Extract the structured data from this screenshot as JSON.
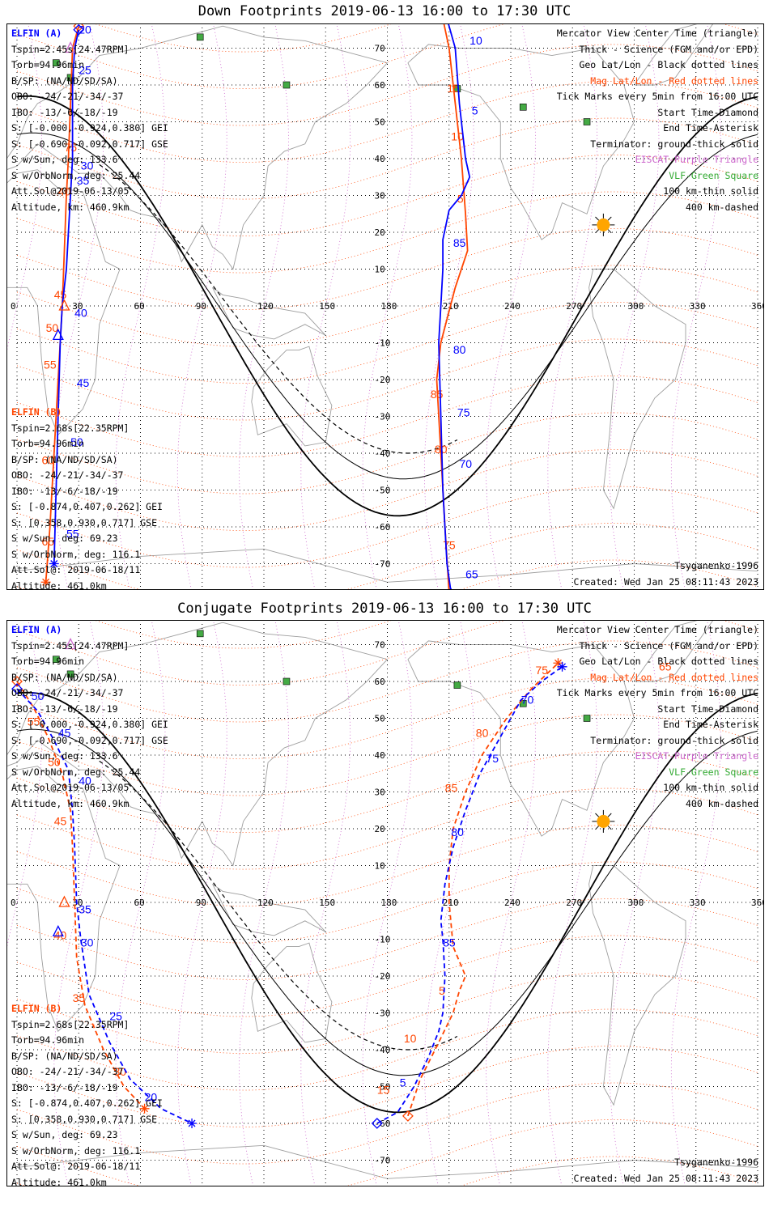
{
  "panels": [
    {
      "title": "Down Footprints 2019-06-13 16:00 to 17:30 UTC",
      "elfin_a": {
        "label": "ELFIN (A)",
        "lines": [
          "Tspin=2.45s[24.47RPM]",
          "Torb=94.96min",
          "B/SP: (NA/ND/SD/SA)",
          "OBO: -24/-21/-34/-37",
          "IBO: -13/-6/-18/-19",
          "S: [-0.000,-0.924,0.380] GEI",
          "S: [-0.690,-0.092,0.717] GSE",
          "S w/Sun, deg: 133.6",
          "S w/OrbNorm, deg: 25.44",
          "Att.Sol@2019-06-13/05",
          "Altitude, km: 460.9km"
        ]
      },
      "elfin_b": {
        "label": "ELFIN (B)",
        "lines": [
          "Tspin=2.68s[22.35RPM]",
          "Torb=94.96min",
          "B/SP: (NA/ND/SD/SA)",
          "OBO: -24/-21/-34/-37",
          "IBO: -13/-6/-18/-19",
          "S: [-0.874,0.407,0.262] GEI",
          "S: [0.358,0.930,0.717] GSE",
          "S w/Sun, deg: 69.23",
          "S w/OrbNorm, deg: 116.1",
          "Att.Sol@: 2019-06-18/11",
          "Altitude: 461.0km"
        ]
      },
      "legend": {
        "black": [
          "Mercator View Center Time (triangle)",
          "Thick - Science (FGM and/or EPD)",
          "Geo Lat/Lon - Black dotted lines"
        ],
        "red": "Mag Lat/Lon - Red dotted lines",
        "black2": [
          "Tick Marks every 5min from 16:00 UTC",
          "Start Time-Diamond",
          "End Time-Asterisk",
          "Terminator: ground-thick solid"
        ],
        "purple": "EISCAT-Purple Triangle",
        "green": "VLF-Green Square",
        "black3": [
          "100 km-thin solid",
          "400 km-dashed"
        ]
      },
      "model": "Tsyganenko-1996",
      "created": "Created: Wed Jan 25 08:11:43 2023",
      "trackA": {
        "color": "#0000ff",
        "dash": "",
        "pts": [
          [
            30,
            75
          ],
          [
            28,
            70
          ],
          [
            27,
            60
          ],
          [
            27,
            40
          ],
          [
            26,
            30
          ],
          [
            25,
            20
          ],
          [
            24,
            10
          ],
          [
            22,
            0
          ],
          [
            21,
            -10
          ],
          [
            20,
            -30
          ],
          [
            19,
            -50
          ],
          [
            18,
            -70
          ]
        ],
        "labels": [
          [
            "20",
            30,
            74
          ],
          [
            "25",
            30,
            63
          ],
          [
            "30",
            31,
            37
          ],
          [
            "35",
            29,
            33
          ],
          [
            "40",
            28,
            -3
          ],
          [
            "45",
            29,
            -22
          ],
          [
            "50",
            26,
            -38
          ],
          [
            "55",
            24,
            -63
          ]
        ]
      },
      "trackB": {
        "color": "#ff4500",
        "dash": "",
        "pts": [
          [
            30,
            76
          ],
          [
            27,
            70
          ],
          [
            26,
            55
          ],
          [
            25,
            40
          ],
          [
            24,
            30
          ],
          [
            23,
            15
          ],
          [
            22,
            0
          ],
          [
            20,
            -20
          ],
          [
            18,
            -40
          ],
          [
            16,
            -60
          ],
          [
            14,
            -75
          ]
        ],
        "labels": [
          [
            "75",
            23,
            42
          ],
          [
            "40",
            20,
            30
          ],
          [
            "45",
            18,
            2
          ],
          [
            "50",
            14,
            -7
          ],
          [
            "55",
            13,
            -17
          ],
          [
            "60",
            12,
            -43
          ],
          [
            "65",
            12,
            -65
          ]
        ]
      },
      "trackA2": {
        "color": "#0000ff",
        "dash": "",
        "pts": [
          [
            209,
            78
          ],
          [
            213,
            70
          ],
          [
            215,
            55
          ],
          [
            218,
            40
          ],
          [
            220,
            35
          ],
          [
            216,
            30
          ],
          [
            210,
            26
          ],
          [
            207,
            18
          ],
          [
            207,
            10
          ],
          [
            206,
            0
          ],
          [
            205,
            -10
          ],
          [
            206,
            -30
          ],
          [
            207,
            -50
          ],
          [
            209,
            -70
          ],
          [
            211,
            -78
          ]
        ],
        "labels": [
          [
            "10",
            220,
            71
          ],
          [
            "5",
            221,
            52
          ],
          [
            "85",
            212,
            16
          ],
          [
            "80",
            212,
            -13
          ],
          [
            "75",
            214,
            -30
          ],
          [
            "70",
            215,
            -44
          ],
          [
            "65",
            218,
            -74
          ]
        ]
      },
      "trackB2": {
        "color": "#ff4500",
        "dash": "",
        "pts": [
          [
            207,
            78
          ],
          [
            210,
            70
          ],
          [
            213,
            55
          ],
          [
            216,
            40
          ],
          [
            218,
            25
          ],
          [
            219,
            15
          ],
          [
            213,
            5
          ],
          [
            206,
            -10
          ],
          [
            204,
            -20
          ],
          [
            206,
            -40
          ],
          [
            208,
            -60
          ],
          [
            210,
            -78
          ]
        ],
        "labels": [
          [
            "15",
            209,
            58
          ],
          [
            "10",
            211,
            45
          ],
          [
            "5",
            214,
            28
          ],
          [
            "85",
            201,
            -25
          ],
          [
            "80",
            203,
            -40
          ],
          [
            "75",
            207,
            -66
          ]
        ]
      }
    },
    {
      "title": "Conjugate Footprints 2019-06-13 16:00 to 17:30 UTC",
      "elfin_a": {
        "label": "ELFIN (A)",
        "lines": [
          "Tspin=2.45s[24.47RPM]",
          "Torb=94.96min",
          "B/SP: (NA/ND/SD/SA)",
          "OBO: -24/-21/-34/-37",
          "IBO: -13/-6/-18/-19",
          "S: [-0.000,-0.924,0.380] GEI",
          "S: [-0.690,-0.092,0.717] GSE",
          "S w/Sun, deg: 133.6",
          "S w/OrbNorm, deg: 25.44",
          "Att.Sol@2019-06-13/05",
          "Altitude, km: 460.9km"
        ]
      },
      "elfin_b": {
        "label": "ELFIN (B)",
        "lines": [
          "Tspin=2.68s[22.35RPM]",
          "Torb=94.96min",
          "B/SP: (NA/ND/SD/SA)",
          "OBO: -24/-21/-34/-37",
          "IBO: -13/-6/-18/-19",
          "S: [-0.874,0.407,0.262] GEI",
          "S: [0.358,0.930,0.717] GSE",
          "S w/Sun, deg: 69.23",
          "S w/OrbNorm, deg: 116.1",
          "Att.Sol@: 2019-06-18/11",
          "Altitude: 461.0km"
        ]
      },
      "legend": {
        "black": [
          "Mercator View Center Time (triangle)",
          "Thick - Science (FGM and/or EPD)",
          "Geo Lat/Lon - Black dotted lines"
        ],
        "red": "Mag Lat/Lon - Red dotted lines",
        "black2": [
          "Tick Marks every 5min from 16:00 UTC",
          "Start Time-Diamond",
          "End Time-Asterisk",
          "Terminator: ground-thick solid"
        ],
        "purple": "EISCAT-Purple Triangle",
        "green": "VLF-Green Square",
        "black3": [
          "100 km-thin solid",
          "400 km-dashed"
        ]
      },
      "model": "Tsyganenko-1996",
      "created": "Created: Wed Jan 25 08:11:43 2023",
      "trackA": {
        "color": "#0000ff",
        "dash": "6,4",
        "pts": [
          [
            0,
            58
          ],
          [
            10,
            52
          ],
          [
            18,
            44
          ],
          [
            25,
            36
          ],
          [
            27,
            25
          ],
          [
            28,
            15
          ],
          [
            29,
            0
          ],
          [
            31,
            -10
          ],
          [
            35,
            -25
          ],
          [
            45,
            -38
          ],
          [
            55,
            -48
          ],
          [
            70,
            -56
          ],
          [
            85,
            -60
          ]
        ],
        "labels": [
          [
            "50",
            7,
            55
          ],
          [
            "45",
            20,
            45
          ],
          [
            "40",
            30,
            32
          ],
          [
            "35",
            30,
            -3
          ],
          [
            "30",
            31,
            -12
          ],
          [
            "25",
            45,
            -32
          ],
          [
            "20",
            62,
            -54
          ]
        ]
      },
      "trackB": {
        "color": "#ff4500",
        "dash": "6,4",
        "pts": [
          [
            0,
            60
          ],
          [
            8,
            53
          ],
          [
            15,
            45
          ],
          [
            22,
            35
          ],
          [
            26,
            25
          ],
          [
            27,
            15
          ],
          [
            28,
            0
          ],
          [
            29,
            -15
          ],
          [
            33,
            -28
          ],
          [
            42,
            -40
          ],
          [
            52,
            -50
          ],
          [
            62,
            -56
          ]
        ],
        "labels": [
          [
            "55",
            5,
            48
          ],
          [
            "50",
            15,
            37
          ],
          [
            "45",
            18,
            21
          ],
          [
            "40",
            18,
            -10
          ],
          [
            "35",
            27,
            -27
          ],
          [
            "30",
            47,
            -47
          ]
        ]
      },
      "trackA2": {
        "color": "#0000ff",
        "dash": "6,4",
        "pts": [
          [
            175,
            -60
          ],
          [
            185,
            -57
          ],
          [
            193,
            -50
          ],
          [
            200,
            -42
          ],
          [
            205,
            -35
          ],
          [
            207,
            -30
          ],
          [
            208,
            -20
          ],
          [
            207,
            -10
          ],
          [
            206,
            -5
          ],
          [
            208,
            5
          ],
          [
            212,
            15
          ],
          [
            218,
            25
          ],
          [
            225,
            35
          ],
          [
            235,
            45
          ],
          [
            245,
            55
          ],
          [
            255,
            60
          ],
          [
            265,
            64
          ]
        ],
        "labels": [
          [
            "5",
            186,
            -50
          ],
          [
            "85",
            207,
            -12
          ],
          [
            "80",
            211,
            18
          ],
          [
            "75",
            228,
            38
          ],
          [
            "70",
            245,
            54
          ]
        ]
      },
      "trackB2": {
        "color": "#ff4500",
        "dash": "6,4",
        "pts": [
          [
            190,
            -58
          ],
          [
            196,
            -48
          ],
          [
            205,
            -38
          ],
          [
            212,
            -30
          ],
          [
            215,
            -24
          ],
          [
            218,
            -20
          ],
          [
            212,
            -12
          ],
          [
            210,
            0
          ],
          [
            210,
            10
          ],
          [
            212,
            20
          ],
          [
            218,
            30
          ],
          [
            226,
            40
          ],
          [
            238,
            50
          ],
          [
            250,
            58
          ],
          [
            263,
            65
          ]
        ],
        "labels": [
          [
            "15",
            175,
            -52
          ],
          [
            "10",
            188,
            -38
          ],
          [
            "5",
            205,
            -25
          ],
          [
            "85",
            208,
            30
          ],
          [
            "80",
            223,
            45
          ],
          [
            "75",
            252,
            62
          ],
          [
            "65",
            312,
            63
          ]
        ]
      }
    }
  ],
  "axis": {
    "lon_ticks": [
      "0",
      "30",
      "60",
      "90",
      "120",
      "150",
      "180",
      "210",
      "240",
      "270",
      "300",
      "330",
      "360"
    ],
    "lat_ticks": [
      "70",
      "60",
      "50",
      "40",
      "30",
      "20",
      "10",
      "-10",
      "-20",
      "-30",
      "-40",
      "-50",
      "-60",
      "-70"
    ]
  },
  "vlf_stations": [
    [
      89,
      73
    ],
    [
      19,
      66
    ],
    [
      26,
      62
    ],
    [
      131,
      60
    ],
    [
      214,
      59
    ],
    [
      246,
      54
    ],
    [
      277,
      50
    ]
  ],
  "sun": [
    285,
    22
  ],
  "colors": {
    "blue": "#0000ff",
    "red": "#ff4500",
    "purple": "#cc66cc",
    "green": "#33aa33",
    "map": "#9e9e9e"
  }
}
